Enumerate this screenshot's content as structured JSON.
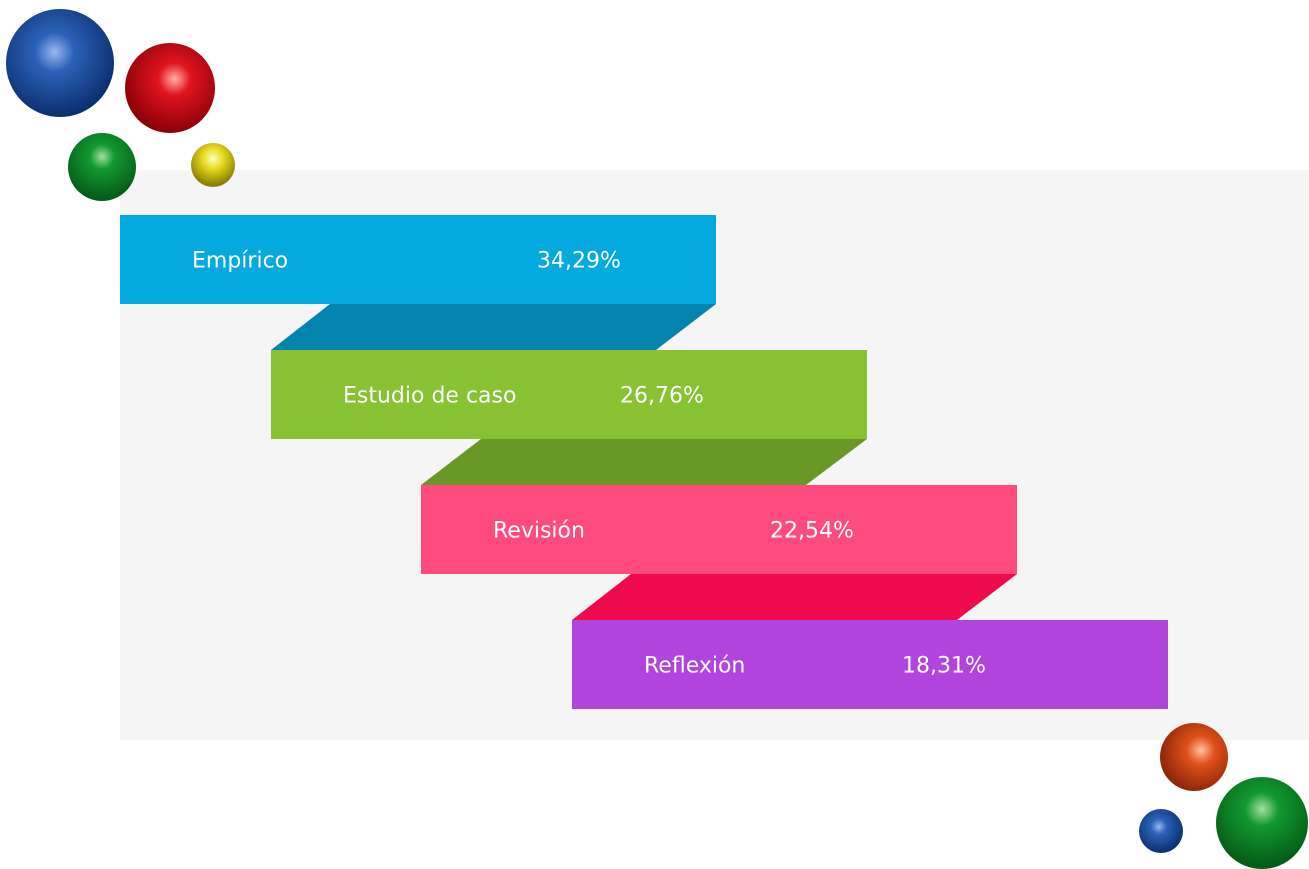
{
  "items": [
    {
      "label": "Empírico",
      "value": "34,29%",
      "color": "#03a9df",
      "shade": "#0284af"
    },
    {
      "label": "Estudio de caso",
      "value": "26,76%",
      "color": "#86c232",
      "shade": "#689826"
    },
    {
      "label": "Revisión",
      "value": "22,54%",
      "color": "#ff4a7e",
      "shade": "#ef0a4c"
    },
    {
      "label": "Reflexión",
      "value": "18,31%",
      "color": "#b044dc"
    }
  ]
}
